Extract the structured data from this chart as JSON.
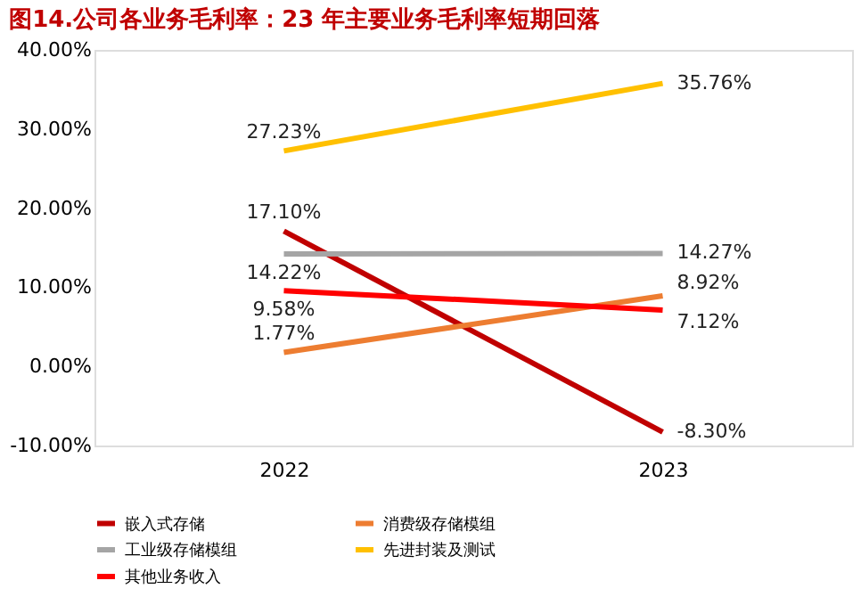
{
  "chart_data": {
    "type": "line",
    "title": "图14.公司各业务毛利率：23 年主要业务毛利率短期回落",
    "categories": [
      "2022",
      "2023"
    ],
    "series": [
      {
        "name": "嵌入式存储",
        "color": "#c00000",
        "values": [
          17.1,
          -8.3
        ],
        "value_labels": [
          "17.10%",
          "-8.30%"
        ]
      },
      {
        "name": "消费级存储模组",
        "color": "#ed7d31",
        "values": [
          1.77,
          8.92
        ],
        "value_labels": [
          "1.77%",
          "8.92%"
        ]
      },
      {
        "name": "工业级存储模组",
        "color": "#a5a5a5",
        "values": [
          14.22,
          14.27
        ],
        "value_labels": [
          "14.22%",
          "14.27%"
        ]
      },
      {
        "name": "先进封装及测试",
        "color": "#ffc000",
        "values": [
          27.23,
          35.76
        ],
        "value_labels": [
          "27.23%",
          "35.76%"
        ]
      },
      {
        "name": "其他业务收入",
        "color": "#ff0000",
        "values": [
          9.58,
          7.12
        ],
        "value_labels": [
          "9.58%",
          "7.12%"
        ]
      }
    ],
    "ylim": [
      -10,
      40
    ],
    "yticks": [
      {
        "value": -10,
        "label": "-10.00%"
      },
      {
        "value": 0,
        "label": "0.00%"
      },
      {
        "value": 10,
        "label": "10.00%"
      },
      {
        "value": 20,
        "label": "20.00%"
      },
      {
        "value": 30,
        "label": "30.00%"
      },
      {
        "value": 40,
        "label": "40.00%"
      }
    ],
    "grid": false,
    "legend": "bottom",
    "marker": "none",
    "line_style": "solid"
  }
}
